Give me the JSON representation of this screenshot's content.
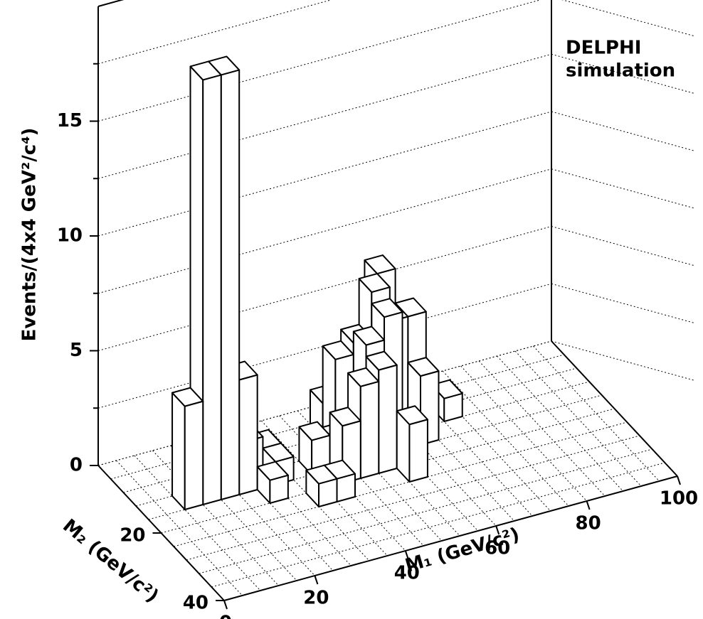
{
  "chart_data": {
    "type": "lego",
    "zlabel": "Events/(4x4 GeV²/c⁴)",
    "xlabel": "M₁ (GeV/c²)",
    "ylabel": "M₂ (GeV/c²)",
    "annotation": [
      "DELPHI",
      "simulation"
    ],
    "xlim": [
      0,
      100
    ],
    "xticks": [
      0,
      20,
      40,
      60,
      80,
      100
    ],
    "ylim": [
      0,
      40
    ],
    "yticks": [
      20,
      40
    ],
    "zlim": [
      0,
      20
    ],
    "zticks": [
      0,
      5,
      10,
      15
    ],
    "zminor_ticks": [
      2.5,
      7.5,
      12.5,
      17.5
    ],
    "bin_width": 4,
    "grid": true,
    "color": "#ffffff",
    "x": [
      8,
      12,
      16,
      20,
      24,
      28,
      28,
      24,
      36,
      40,
      32,
      36,
      44,
      40,
      44,
      48,
      48,
      52,
      56,
      52,
      56,
      60,
      48,
      44,
      60,
      52,
      64,
      68
    ],
    "y": [
      12,
      12,
      12,
      12,
      8,
      8,
      12,
      16,
      12,
      12,
      20,
      20,
      4,
      16,
      16,
      16,
      12,
      12,
      8,
      8,
      4,
      8,
      8,
      8,
      12,
      20,
      4,
      8
    ],
    "values": [
      4.5,
      18.5,
      18.5,
      5.0,
      1.5,
      1.0,
      1.0,
      1.0,
      1.5,
      1.2,
      1.0,
      1.0,
      1.5,
      2.5,
      4.0,
      4.5,
      5.0,
      6.0,
      5.0,
      6.5,
      6.5,
      5.0,
      4.5,
      4.0,
      3.0,
      2.5,
      1.5,
      1.0
    ]
  }
}
